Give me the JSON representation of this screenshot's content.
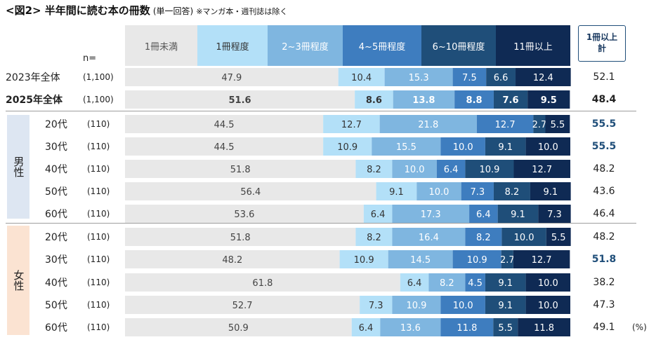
{
  "title": {
    "main": "<図2> 半年間に読む本の冊数",
    "sub": "(単一回答)",
    "note": "※マンガ本・週刊誌は除く"
  },
  "n_header": "n=",
  "total_header": {
    "line1": "1冊以上",
    "line2": "計"
  },
  "groups": {
    "male": "男性",
    "female": "女性"
  },
  "unit": "(%)",
  "colors": {
    "seg0": "#e8e8e8",
    "seg1": "#b3e0f8",
    "seg2": "#7fb6e0",
    "seg3": "#3e7dbf",
    "seg4": "#1f4e79",
    "seg5": "#0f2a54",
    "total_highlight": "#1f4e79"
  },
  "rows": [
    {
      "label": "2023年全体",
      "n": "(1,100)",
      "total": "52.1",
      "bold": false,
      "highlight": false
    },
    {
      "label": "2025年全体",
      "n": "(1,100)",
      "total": "48.4",
      "bold": true,
      "highlight": false
    },
    {
      "label": "20代",
      "n": "(110)",
      "total": "55.5",
      "bold": false,
      "highlight": true
    },
    {
      "label": "30代",
      "n": "(110)",
      "total": "55.5",
      "bold": false,
      "highlight": true
    },
    {
      "label": "40代",
      "n": "(110)",
      "total": "48.2",
      "bold": false,
      "highlight": false
    },
    {
      "label": "50代",
      "n": "(110)",
      "total": "43.6",
      "bold": false,
      "highlight": false
    },
    {
      "label": "60代",
      "n": "(110)",
      "total": "46.4",
      "bold": false,
      "highlight": false
    },
    {
      "label": "20代",
      "n": "(110)",
      "total": "48.2",
      "bold": false,
      "highlight": false
    },
    {
      "label": "30代",
      "n": "(110)",
      "total": "51.8",
      "bold": false,
      "highlight": true
    },
    {
      "label": "40代",
      "n": "(110)",
      "total": "38.2",
      "bold": false,
      "highlight": false
    },
    {
      "label": "50代",
      "n": "(110)",
      "total": "47.3",
      "bold": false,
      "highlight": false
    },
    {
      "label": "60代",
      "n": "(110)",
      "total": "49.1",
      "bold": false,
      "highlight": false
    }
  ],
  "chart_data": {
    "type": "bar",
    "orientation": "horizontal",
    "stacked": true,
    "title": "<図2> 半年間に読む本の冊数",
    "categories": [
      "2023年全体",
      "2025年全体",
      "男性 20代",
      "男性 30代",
      "男性 40代",
      "男性 50代",
      "男性 60代",
      "女性 20代",
      "女性 30代",
      "女性 40代",
      "女性 50代",
      "女性 60代"
    ],
    "series": [
      {
        "name": "1冊未満",
        "values": [
          47.9,
          51.6,
          44.5,
          44.5,
          51.8,
          56.4,
          53.6,
          51.8,
          48.2,
          61.8,
          52.7,
          50.9
        ]
      },
      {
        "name": "1冊程度",
        "values": [
          10.4,
          8.6,
          12.7,
          10.9,
          8.2,
          9.1,
          6.4,
          8.2,
          10.9,
          6.4,
          7.3,
          6.4
        ]
      },
      {
        "name": "2~3冊程度",
        "values": [
          15.3,
          13.8,
          21.8,
          15.5,
          10.0,
          10.0,
          17.3,
          16.4,
          14.5,
          8.2,
          10.9,
          13.6
        ]
      },
      {
        "name": "4~5冊程度",
        "values": [
          7.5,
          8.8,
          12.7,
          10.0,
          6.4,
          7.3,
          6.4,
          8.2,
          10.9,
          4.5,
          10.0,
          11.8
        ]
      },
      {
        "name": "6~10冊程度",
        "values": [
          6.6,
          7.6,
          2.7,
          9.1,
          10.9,
          8.2,
          9.1,
          10.0,
          2.7,
          9.1,
          9.1,
          5.5
        ]
      },
      {
        "name": "11冊以上",
        "values": [
          12.4,
          9.5,
          5.5,
          10.0,
          12.7,
          9.1,
          7.3,
          5.5,
          12.7,
          10.0,
          10.0,
          11.8
        ]
      }
    ],
    "xlim": [
      0,
      100
    ],
    "unit": "%"
  }
}
